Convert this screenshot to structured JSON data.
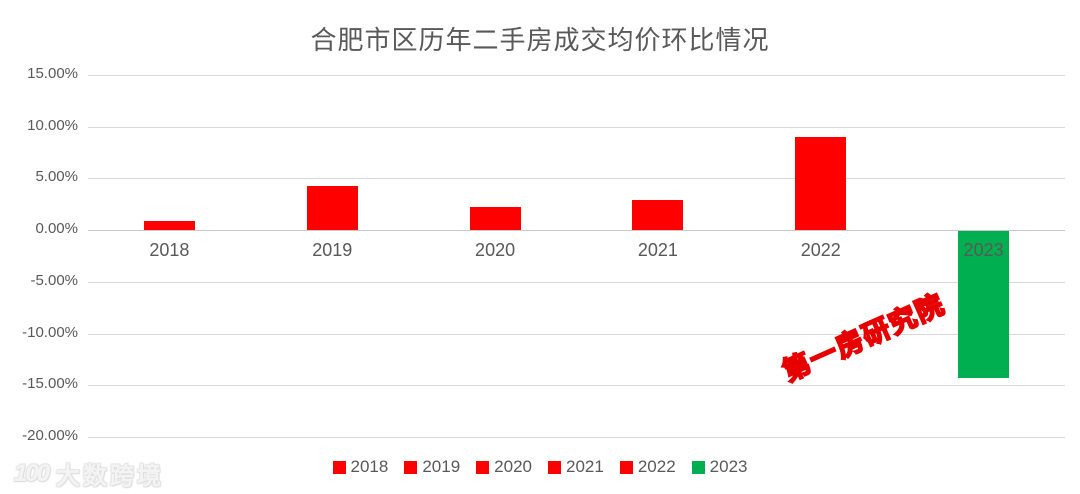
{
  "chart_data": {
    "type": "bar",
    "title": "合肥市区历年二手房成交均价环比情况",
    "categories": [
      "2018",
      "2019",
      "2020",
      "2021",
      "2022",
      "2023"
    ],
    "values": [
      0.9,
      4.3,
      2.2,
      2.9,
      9.0,
      -14.2
    ],
    "value_unit": "percent",
    "bar_colors": [
      "#FF0000",
      "#FF0000",
      "#FF0000",
      "#FF0000",
      "#FF0000",
      "#00B050"
    ],
    "ylim": [
      -20,
      15
    ],
    "y_ticks": [
      15,
      10,
      5,
      0,
      -5,
      -10,
      -15,
      -20
    ],
    "y_tick_labels": [
      "15.00%",
      "10.00%",
      "5.00%",
      "0.00%",
      "-5.00%",
      "-10.00%",
      "-15.00%",
      "-20.00%"
    ],
    "xlabel": "",
    "ylabel": "",
    "grid": true,
    "legend_position": "bottom",
    "legend": [
      {
        "label": "2018",
        "color": "#FF0000"
      },
      {
        "label": "2019",
        "color": "#FF0000"
      },
      {
        "label": "2020",
        "color": "#FF0000"
      },
      {
        "label": "2021",
        "color": "#FF0000"
      },
      {
        "label": "2022",
        "color": "#FF0000"
      },
      {
        "label": "2023",
        "color": "#00B050"
      }
    ]
  },
  "watermarks": {
    "diagonal": "第一房研究院",
    "logo_mark": "100",
    "logo_text": "大数跨境"
  },
  "colors": {
    "positive_bar": "#FF0000",
    "negative_bar": "#00B050",
    "axis_text": "#595959",
    "gridline": "#D9D9D9",
    "watermark_red": "#E60000"
  }
}
